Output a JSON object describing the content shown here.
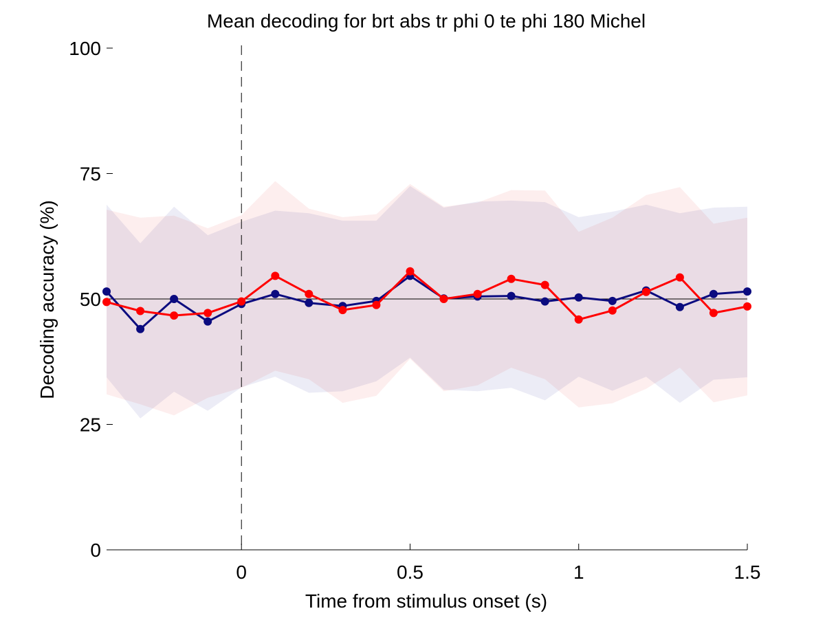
{
  "chart_data": {
    "type": "line",
    "title": "Mean decoding for brt abs tr phi 0 te phi 180  Michel",
    "xlabel": "Time from stimulus onset (s)",
    "ylabel": "Decoding accuracy (%)",
    "xlim": [
      -0.4,
      1.5
    ],
    "ylim": [
      0,
      100
    ],
    "xticks": [
      0,
      0.5,
      1,
      1.5
    ],
    "xtick_labels": [
      "0",
      "0.5",
      "1",
      "1.5"
    ],
    "yticks": [
      0,
      25,
      50,
      75,
      100
    ],
    "ytick_labels": [
      "0",
      "25",
      "50",
      "75",
      "100"
    ],
    "grid": false,
    "reference_lines": {
      "chance_level": 50,
      "stimulus_onset": 0
    },
    "x": [
      -0.4,
      -0.3,
      -0.2,
      -0.1,
      0,
      0.1,
      0.2,
      0.3,
      0.4,
      0.5,
      0.6,
      0.7,
      0.8,
      0.9,
      1.0,
      1.1,
      1.2,
      1.3,
      1.4,
      1.5
    ],
    "series": [
      {
        "color": "#0b0b7f",
        "band_color": "#ececf6",
        "values": [
          51.5,
          44.0,
          50.0,
          45.5,
          49.0,
          51.0,
          49.2,
          48.6,
          49.6,
          54.6,
          50.1,
          50.5,
          50.6,
          49.5,
          50.3,
          49.6,
          51.7,
          48.4,
          51.0,
          51.5
        ],
        "upper": [
          68.8,
          61.1,
          68.4,
          62.7,
          65.4,
          67.6,
          67.1,
          65.6,
          65.6,
          72.5,
          68.2,
          69.4,
          69.6,
          69.3,
          66.3,
          67.4,
          68.8,
          67.1,
          68.2,
          68.4
        ],
        "lower": [
          34.4,
          26.2,
          31.5,
          27.7,
          32.4,
          34.5,
          31.3,
          31.6,
          33.6,
          38.3,
          31.9,
          31.6,
          32.3,
          29.8,
          34.5,
          31.7,
          34.5,
          29.3,
          33.9,
          34.4
        ]
      },
      {
        "color": "#ff0000",
        "band_color": "#fdeeee",
        "values": [
          49.4,
          47.6,
          46.7,
          47.2,
          49.5,
          54.6,
          51.0,
          47.8,
          48.8,
          55.5,
          50.0,
          51.0,
          54.0,
          52.8,
          45.9,
          47.7,
          51.4,
          54.3,
          47.2,
          48.5
        ],
        "upper": [
          67.8,
          66.2,
          66.6,
          64.1,
          66.7,
          73.5,
          68.0,
          66.3,
          66.9,
          72.9,
          68.4,
          69.2,
          71.7,
          71.6,
          63.4,
          66.2,
          70.7,
          72.3,
          65.0,
          66.2
        ],
        "lower": [
          31.0,
          29.0,
          26.8,
          30.3,
          32.3,
          35.7,
          34.0,
          29.3,
          30.7,
          38.1,
          31.6,
          32.8,
          36.3,
          34.0,
          28.4,
          29.2,
          32.1,
          36.3,
          29.4,
          30.8
        ]
      }
    ]
  }
}
